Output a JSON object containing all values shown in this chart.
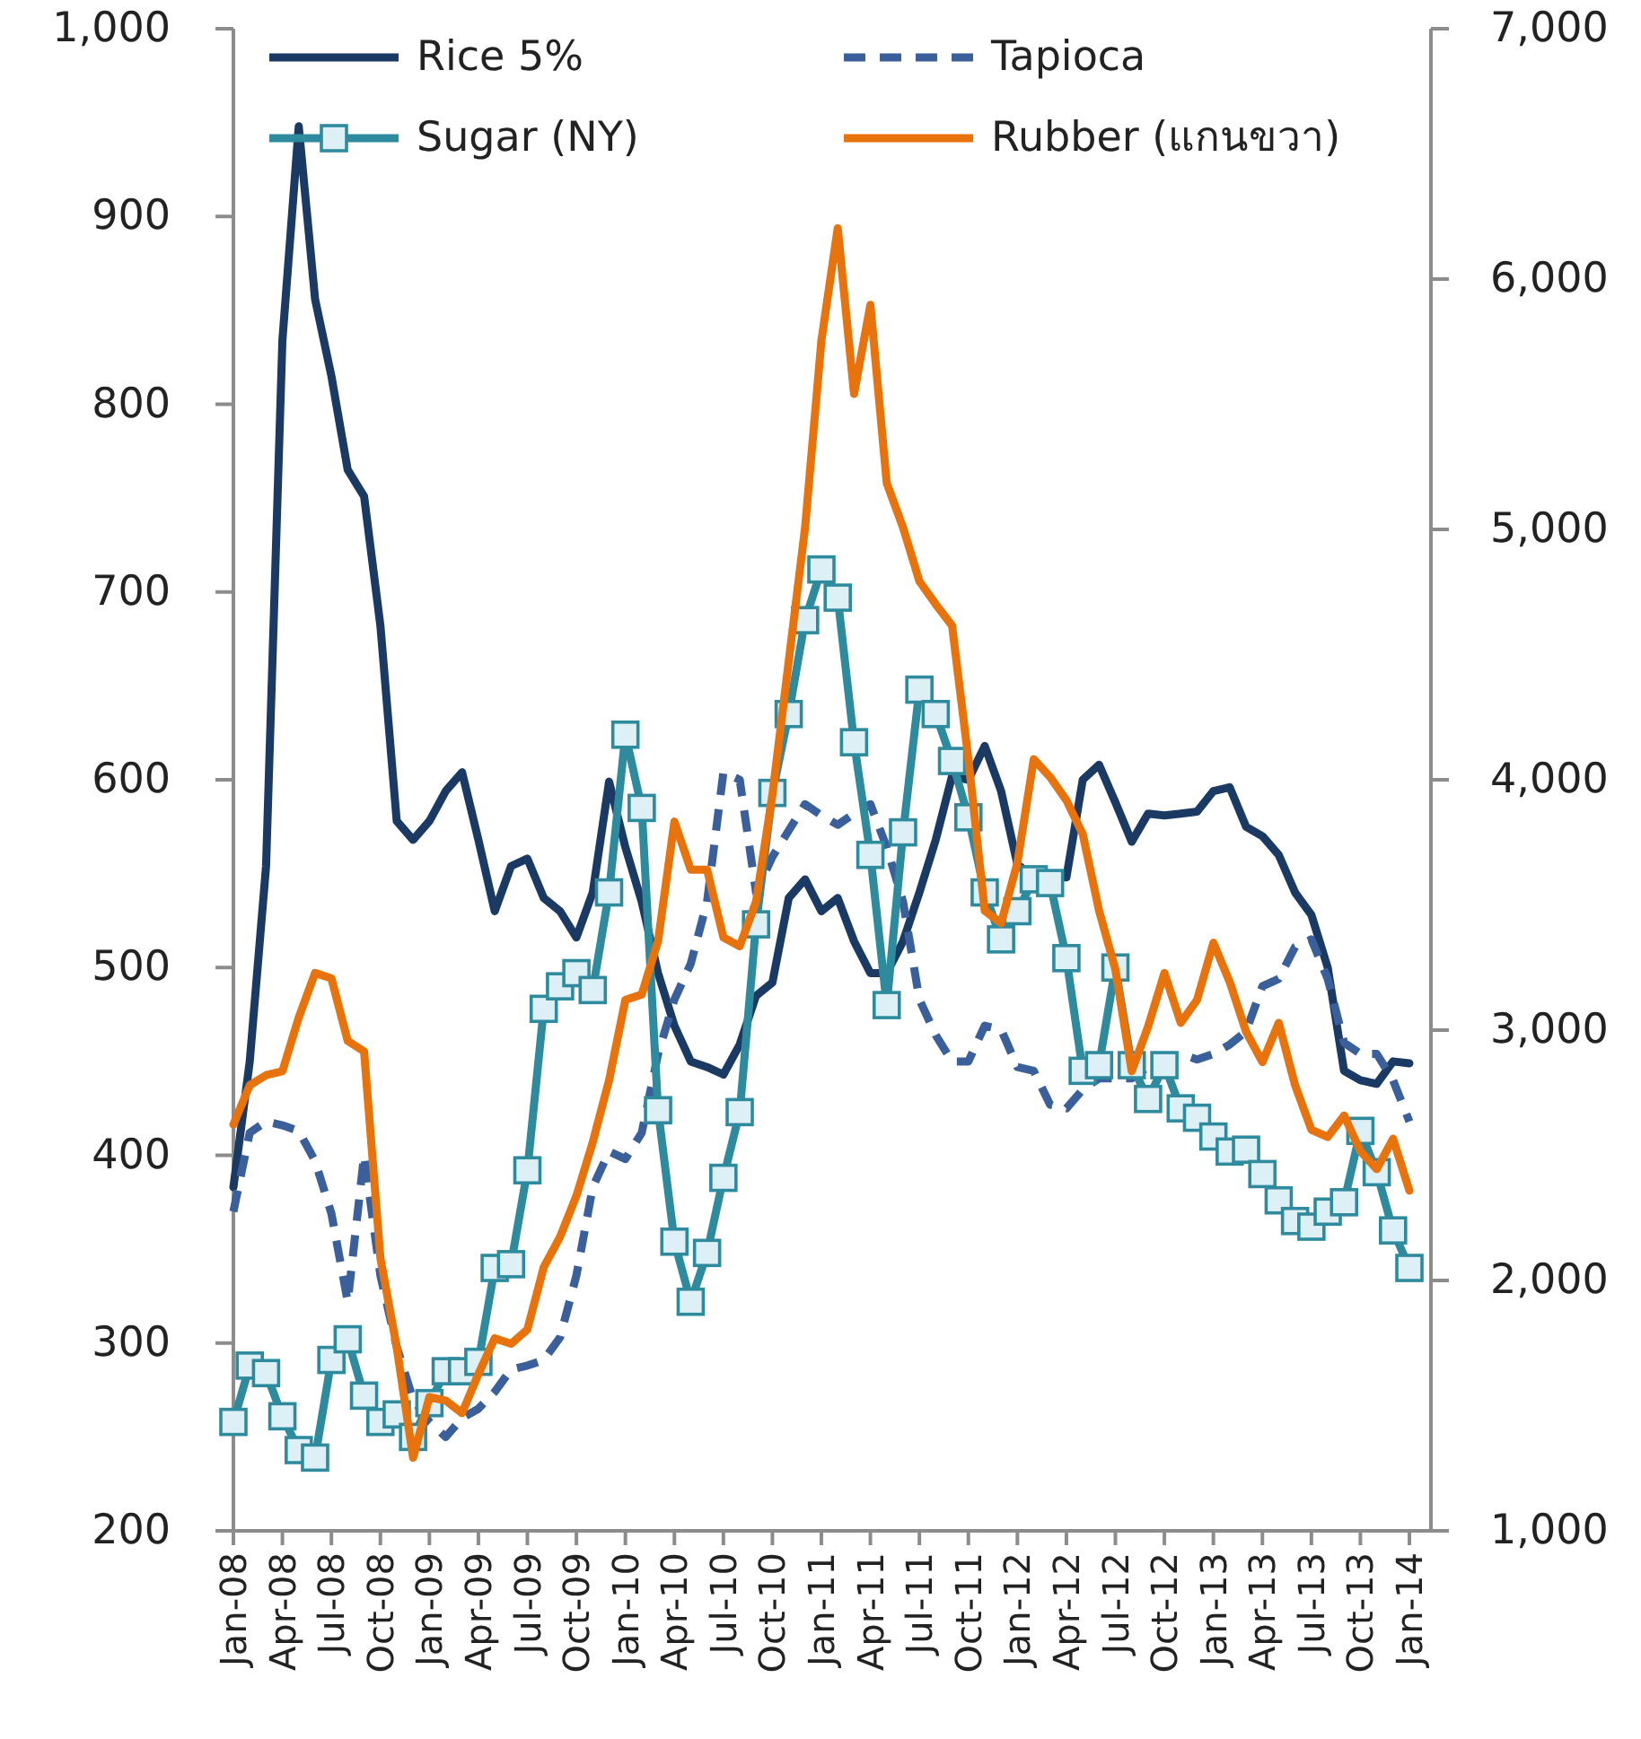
{
  "chart_data": {
    "type": "line",
    "categories": [
      "Jan-08",
      null,
      null,
      "Apr-08",
      null,
      null,
      "Jul-08",
      null,
      null,
      "Oct-08",
      null,
      null,
      "Jan-09",
      null,
      null,
      "Apr-09",
      null,
      null,
      "Jul-09",
      null,
      null,
      "Oct-09",
      null,
      null,
      "Jan-10",
      null,
      null,
      "Apr-10",
      null,
      null,
      "Jul-10",
      null,
      null,
      "Oct-10",
      null,
      null,
      "Jan-11",
      null,
      null,
      "Apr-11",
      null,
      null,
      "Jul-11",
      null,
      null,
      "Oct-11",
      null,
      null,
      "Jan-12",
      null,
      null,
      "Apr-12",
      null,
      null,
      "Jul-12",
      null,
      null,
      "Oct-12",
      null,
      null,
      "Jan-13",
      null,
      null,
      "Apr-13",
      null,
      null,
      "Jul-13",
      null,
      null,
      "Oct-13",
      null,
      null,
      "Jan-14"
    ],
    "ylim": [
      200,
      1000
    ],
    "yticks": [
      200,
      300,
      400,
      500,
      600,
      700,
      800,
      900,
      {
        "value": 1000,
        "label": "1,000"
      }
    ],
    "y2lim": [
      1000,
      7000
    ],
    "y2ticks": [
      {
        "value": 1000,
        "label": "1,000"
      },
      {
        "value": 2000,
        "label": "2,000"
      },
      {
        "value": 3000,
        "label": "3,000"
      },
      {
        "value": 4000,
        "label": "4,000"
      },
      {
        "value": 5000,
        "label": "5,000"
      },
      {
        "value": 6000,
        "label": "6,000"
      },
      {
        "value": 7000,
        "label": "7,000"
      }
    ],
    "legend": "top",
    "grid": false,
    "series": [
      {
        "name": "Rice 5%",
        "color": "#1b3a63",
        "marker": "none",
        "line_style": "solid",
        "values": [
          383,
          450,
          554,
          834,
          948,
          856,
          815,
          765,
          751,
          682,
          578,
          568,
          578,
          594,
          604,
          568,
          530,
          554,
          558,
          537,
          530,
          516,
          540,
          599,
          564,
          535,
          497,
          469,
          450,
          447,
          443,
          459,
          485,
          492,
          537,
          547,
          530,
          537,
          514,
          497,
          497,
          514,
          540,
          568,
          602,
          600,
          618,
          594,
          555,
          548,
          548,
          548,
          600,
          608,
          588,
          567,
          582,
          581,
          582,
          583,
          594,
          596,
          575,
          570,
          560,
          540,
          528,
          500,
          445,
          440,
          438,
          450,
          449
        ]
      },
      {
        "name": "Tapioca",
        "color": "#3a5f9a",
        "marker": "none",
        "line_style": "dashed",
        "values": [
          370,
          412,
          418,
          416,
          413,
          397,
          369,
          322,
          400,
          336,
          298,
          270,
          258,
          250,
          260,
          265,
          274,
          286,
          288,
          291,
          303,
          336,
          383,
          402,
          398,
          412,
          454,
          483,
          502,
          535,
          604,
          600,
          540,
          559,
          573,
          587,
          581,
          576,
          582,
          587,
          564,
          535,
          483,
          464,
          450,
          450,
          469,
          467,
          447,
          445,
          427,
          425,
          435,
          441,
          441,
          441,
          447,
          451,
          454,
          451,
          454,
          459,
          466,
          490,
          494,
          511,
          515,
          494,
          460,
          454,
          454,
          440,
          418
        ]
      },
      {
        "name": "Sugar (NY)",
        "color": "#2e8b9e",
        "marker": "square",
        "line_style": "solid",
        "values": [
          258,
          288,
          284,
          261,
          243,
          239,
          291,
          302,
          272,
          258,
          262,
          250,
          268,
          285,
          285,
          290,
          340,
          342,
          392,
          478,
          490,
          497,
          488,
          540,
          624,
          585,
          424,
          354,
          322,
          348,
          388,
          423,
          523,
          593,
          635,
          685,
          712,
          697,
          620,
          560,
          480,
          572,
          648,
          635,
          610,
          580,
          540,
          515,
          530,
          547,
          545,
          505,
          445,
          448,
          500,
          448,
          430,
          448,
          425,
          420,
          410,
          402,
          403,
          390,
          376,
          365,
          362,
          370,
          375,
          413,
          391,
          360,
          340
        ]
      },
      {
        "name": "Rubber (แกนขวา)",
        "color": "#e8730c",
        "marker": "none",
        "line_style": "solid",
        "axis": "y2",
        "values": [
          2623,
          2780,
          2820,
          2836,
          3050,
          3228,
          3207,
          2957,
          2915,
          2089,
          1733,
          1292,
          1534,
          1520,
          1470,
          1626,
          1769,
          1747,
          1804,
          2053,
          2174,
          2338,
          2552,
          2800,
          3121,
          3142,
          3356,
          3833,
          3641,
          3641,
          3370,
          3335,
          3513,
          3940,
          4473,
          5007,
          5754,
          6203,
          5541,
          5897,
          5185,
          5007,
          4793,
          4701,
          4616,
          4082,
          3477,
          3427,
          3669,
          4082,
          4011,
          3918,
          3783,
          3477,
          3242,
          2836,
          3014,
          3228,
          3029,
          3121,
          3349,
          3192,
          2993,
          2872,
          3029,
          2780,
          2602,
          2573,
          2659,
          2516,
          2445,
          2566,
          2359
        ]
      }
    ]
  }
}
